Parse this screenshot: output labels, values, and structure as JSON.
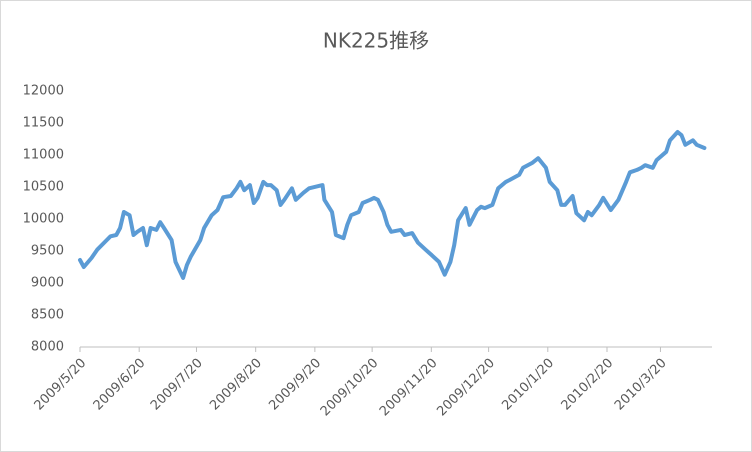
{
  "chart_data": {
    "type": "line",
    "title": "NK225推移",
    "x": [
      "2009/5/20",
      "2009/5/22",
      "2009/5/26",
      "2009/5/29",
      "2009/6/3",
      "2009/6/5",
      "2009/6/8",
      "2009/6/10",
      "2009/6/12",
      "2009/6/15",
      "2009/6/17",
      "2009/6/19",
      "2009/6/22",
      "2009/6/24",
      "2009/6/26",
      "2009/6/29",
      "2009/7/1",
      "2009/7/3",
      "2009/7/7",
      "2009/7/9",
      "2009/7/13",
      "2009/7/15",
      "2009/7/17",
      "2009/7/22",
      "2009/7/24",
      "2009/7/28",
      "2009/7/31",
      "2009/8/3",
      "2009/8/7",
      "2009/8/10",
      "2009/8/12",
      "2009/8/14",
      "2009/8/17",
      "2009/8/19",
      "2009/8/21",
      "2009/8/24",
      "2009/8/26",
      "2009/8/28",
      "2009/8/31",
      "2009/9/2",
      "2009/9/4",
      "2009/9/8",
      "2009/9/10",
      "2009/9/14",
      "2009/9/17",
      "2009/9/24",
      "2009/9/25",
      "2009/9/29",
      "2009/10/1",
      "2009/10/5",
      "2009/10/7",
      "2009/10/9",
      "2009/10/13",
      "2009/10/15",
      "2009/10/19",
      "2009/10/21",
      "2009/10/23",
      "2009/10/26",
      "2009/10/28",
      "2009/10/30",
      "2009/11/4",
      "2009/11/6",
      "2009/11/10",
      "2009/11/13",
      "2009/11/17",
      "2009/11/20",
      "2009/11/24",
      "2009/11/27",
      "2009/11/30",
      "2009/12/2",
      "2009/12/4",
      "2009/12/8",
      "2009/12/10",
      "2009/12/14",
      "2009/12/16",
      "2009/12/18",
      "2009/12/22",
      "2009/12/25",
      "2009/12/29",
      "2009/12/31",
      "2010/1/5",
      "2010/1/7",
      "2010/1/12",
      "2010/1/15",
      "2010/1/19",
      "2010/1/21",
      "2010/1/25",
      "2010/1/27",
      "2010/1/29",
      "2010/2/2",
      "2010/2/4",
      "2010/2/8",
      "2010/2/10",
      "2010/2/12",
      "2010/2/16",
      "2010/2/18",
      "2010/2/22",
      "2010/2/24",
      "2010/2/26",
      "2010/3/2",
      "2010/3/4",
      "2010/3/8",
      "2010/3/10",
      "2010/3/12",
      "2010/3/16",
      "2010/3/18",
      "2010/3/23",
      "2010/3/25",
      "2010/3/29",
      "2010/3/31",
      "2010/4/2",
      "2010/4/6",
      "2010/4/8",
      "2010/4/12"
    ],
    "series": [
      {
        "name": "NK225",
        "color": "#5b9bd5",
        "values": [
          9360,
          9250,
          9390,
          9520,
          9670,
          9730,
          9750,
          9860,
          10110,
          10060,
          9750,
          9800,
          9860,
          9590,
          9860,
          9830,
          9950,
          9860,
          9670,
          9330,
          9080,
          9280,
          9410,
          9670,
          9860,
          10060,
          10140,
          10340,
          10360,
          10480,
          10580,
          10450,
          10530,
          10250,
          10330,
          10580,
          10530,
          10530,
          10450,
          10220,
          10300,
          10480,
          10300,
          10410,
          10480,
          10530,
          10300,
          10110,
          9750,
          9700,
          9910,
          10060,
          10110,
          10250,
          10300,
          10330,
          10300,
          10110,
          9910,
          9800,
          9830,
          9750,
          9780,
          9630,
          9520,
          9440,
          9330,
          9130,
          9330,
          9590,
          9980,
          10170,
          9910,
          10140,
          10190,
          10170,
          10220,
          10480,
          10580,
          10610,
          10690,
          10800,
          10880,
          10950,
          10800,
          10580,
          10450,
          10220,
          10220,
          10360,
          10090,
          9980,
          10110,
          10060,
          10220,
          10330,
          10140,
          10220,
          10300,
          10580,
          10730,
          10770,
          10800,
          10840,
          10800,
          10920,
          11050,
          11230,
          11360,
          11310,
          11160,
          11230,
          11160,
          11110
        ]
      }
    ],
    "xlim": [
      "2009/5/20",
      "2010/4/16"
    ],
    "xticks": [
      "2009/5/20",
      "2009/6/20",
      "2009/7/20",
      "2009/8/20",
      "2009/9/20",
      "2009/10/20",
      "2009/11/20",
      "2009/12/20",
      "2010/1/20",
      "2010/2/20",
      "2010/3/20"
    ],
    "ylim": [
      8000,
      12000
    ],
    "yticks": [
      8000,
      8500,
      9000,
      9500,
      10000,
      10500,
      11000,
      11500,
      12000
    ],
    "grid": false
  }
}
